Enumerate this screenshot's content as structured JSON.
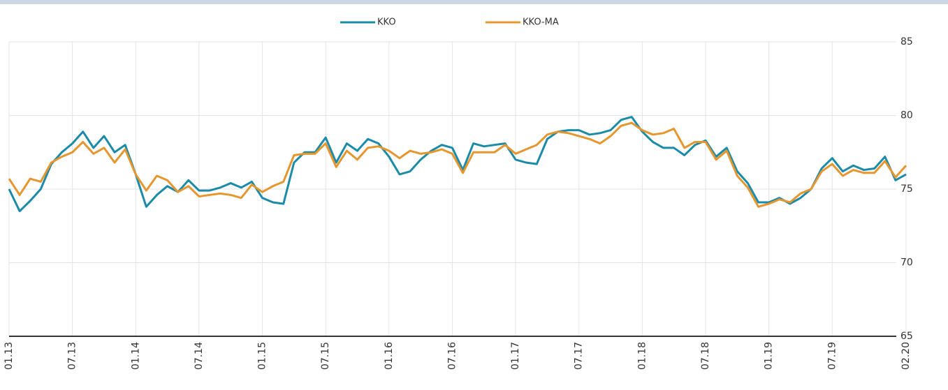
{
  "chart_data": {
    "type": "line",
    "categories": [
      "01.13",
      null,
      null,
      null,
      null,
      null,
      "07.13",
      null,
      null,
      null,
      null,
      null,
      "01.14",
      null,
      null,
      null,
      null,
      null,
      "07.14",
      null,
      null,
      null,
      null,
      null,
      "01.15",
      null,
      null,
      null,
      null,
      null,
      "07.15",
      null,
      null,
      null,
      null,
      null,
      "01.16",
      null,
      null,
      null,
      null,
      null,
      "07.16",
      null,
      null,
      null,
      null,
      null,
      "01.17",
      null,
      null,
      null,
      null,
      null,
      "07.17",
      null,
      null,
      null,
      null,
      null,
      "01.18",
      null,
      null,
      null,
      null,
      null,
      "07.18",
      null,
      null,
      null,
      null,
      null,
      "01.19",
      null,
      null,
      null,
      null,
      null,
      "07.19",
      null,
      null,
      null,
      null,
      null,
      null,
      "02.20"
    ],
    "series": [
      {
        "name": "KKO",
        "color": "#1b8ba8",
        "values": [
          75.0,
          73.5,
          74.2,
          75.0,
          76.7,
          77.5,
          78.1,
          78.9,
          77.8,
          78.6,
          77.5,
          78.0,
          76.0,
          73.8,
          74.6,
          75.2,
          74.8,
          75.6,
          74.9,
          74.9,
          75.1,
          75.4,
          75.1,
          75.5,
          74.4,
          74.1,
          74.0,
          76.8,
          77.5,
          77.5,
          78.5,
          76.8,
          78.1,
          77.6,
          78.4,
          78.1,
          77.2,
          76.0,
          76.2,
          77.0,
          77.6,
          78.0,
          77.8,
          76.3,
          78.1,
          77.9,
          78.0,
          78.1,
          77.0,
          76.8,
          76.7,
          78.4,
          78.9,
          79.0,
          79.0,
          78.7,
          78.8,
          79.0,
          79.7,
          79.9,
          78.9,
          78.2,
          77.8,
          77.8,
          77.3,
          78.0,
          78.3,
          77.2,
          77.8,
          76.2,
          75.4,
          74.1,
          74.1,
          74.4,
          74.0,
          74.4,
          75.0,
          76.4,
          77.1,
          76.2,
          76.6,
          76.3,
          76.4,
          77.2,
          75.6,
          76.0
        ]
      },
      {
        "name": "KKO-MA",
        "color": "#e5962e",
        "values": [
          75.7,
          74.6,
          75.7,
          75.5,
          76.8,
          77.2,
          77.5,
          78.2,
          77.4,
          77.8,
          76.8,
          77.7,
          76.0,
          74.9,
          75.9,
          75.6,
          74.8,
          75.2,
          74.5,
          74.6,
          74.7,
          74.6,
          74.4,
          75.3,
          74.8,
          75.2,
          75.5,
          77.3,
          77.4,
          77.4,
          78.1,
          76.5,
          77.6,
          77.0,
          77.8,
          77.9,
          77.6,
          77.1,
          77.6,
          77.4,
          77.5,
          77.7,
          77.4,
          76.1,
          77.5,
          77.5,
          77.5,
          78.0,
          77.4,
          77.7,
          78.0,
          78.7,
          78.9,
          78.8,
          78.6,
          78.4,
          78.1,
          78.6,
          79.3,
          79.5,
          79.0,
          78.7,
          78.8,
          79.1,
          77.8,
          78.2,
          78.2,
          77.0,
          77.6,
          75.9,
          75.1,
          73.8,
          74.0,
          74.3,
          74.1,
          74.7,
          75.0,
          76.2,
          76.7,
          75.9,
          76.3,
          76.1,
          76.1,
          76.9,
          75.8,
          76.6
        ]
      }
    ],
    "ylim": [
      65,
      85
    ],
    "yticks": [
      65,
      70,
      75,
      80,
      85
    ],
    "grid": true,
    "legend": "top"
  }
}
